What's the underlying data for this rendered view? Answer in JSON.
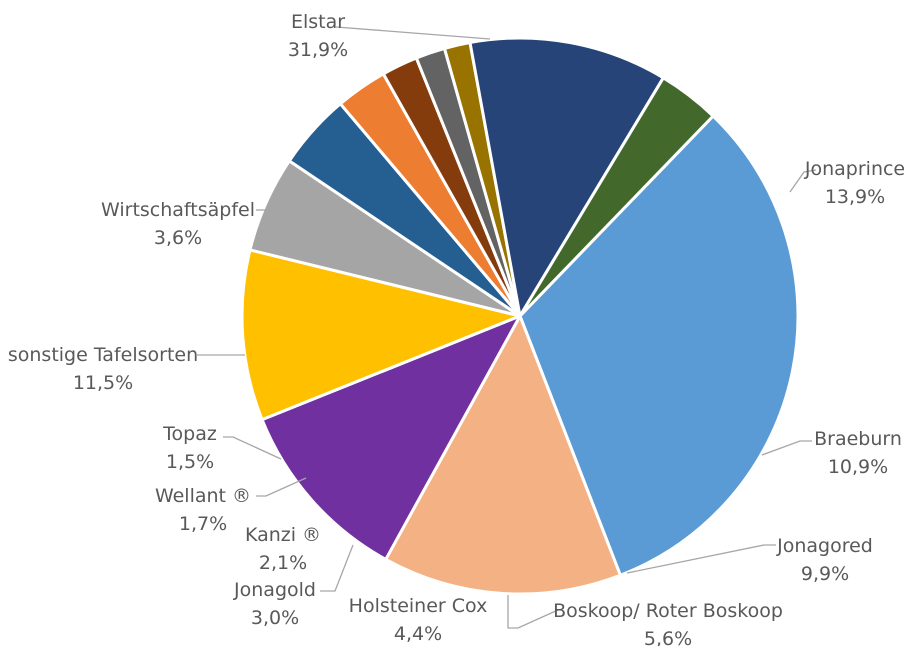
{
  "chart_data": {
    "type": "pie",
    "title": "",
    "legend": "none",
    "unit": "%",
    "slices": [
      {
        "name": "Elstar",
        "value": 31.9,
        "label": "31,9%",
        "color": "#5B9BD5"
      },
      {
        "name": "Jonaprince",
        "value": 13.9,
        "label": "13,9%",
        "color": "#F4B183"
      },
      {
        "name": "Braeburn",
        "value": 10.9,
        "label": "10,9%",
        "color": "#7030A0"
      },
      {
        "name": "Jonagored",
        "value": 9.9,
        "label": "9,9%",
        "color": "#FFC000"
      },
      {
        "name": "Boskoop/ Roter Boskoop",
        "value": 5.6,
        "label": "5,6%",
        "color": "#A5A5A5"
      },
      {
        "name": "Holsteiner Cox",
        "value": 4.4,
        "label": "4,4%",
        "color": "#255E91"
      },
      {
        "name": "Jonagold",
        "value": 3.0,
        "label": "3,0%",
        "color": "#ED7D31"
      },
      {
        "name": "Kanzi ®",
        "value": 2.1,
        "label": "2,1%",
        "color": "#843C0C"
      },
      {
        "name": "Wellant ®",
        "value": 1.7,
        "label": "1,7%",
        "color": "#636363"
      },
      {
        "name": "Topaz",
        "value": 1.5,
        "label": "1,5%",
        "color": "#997300"
      },
      {
        "name": "sonstige Tafelsorten",
        "value": 11.5,
        "label": "11,5%",
        "color": "#264478"
      },
      {
        "name": "Wirtschaftsäpfel",
        "value": 3.6,
        "label": "3,6%",
        "color": "#43682B"
      }
    ]
  }
}
